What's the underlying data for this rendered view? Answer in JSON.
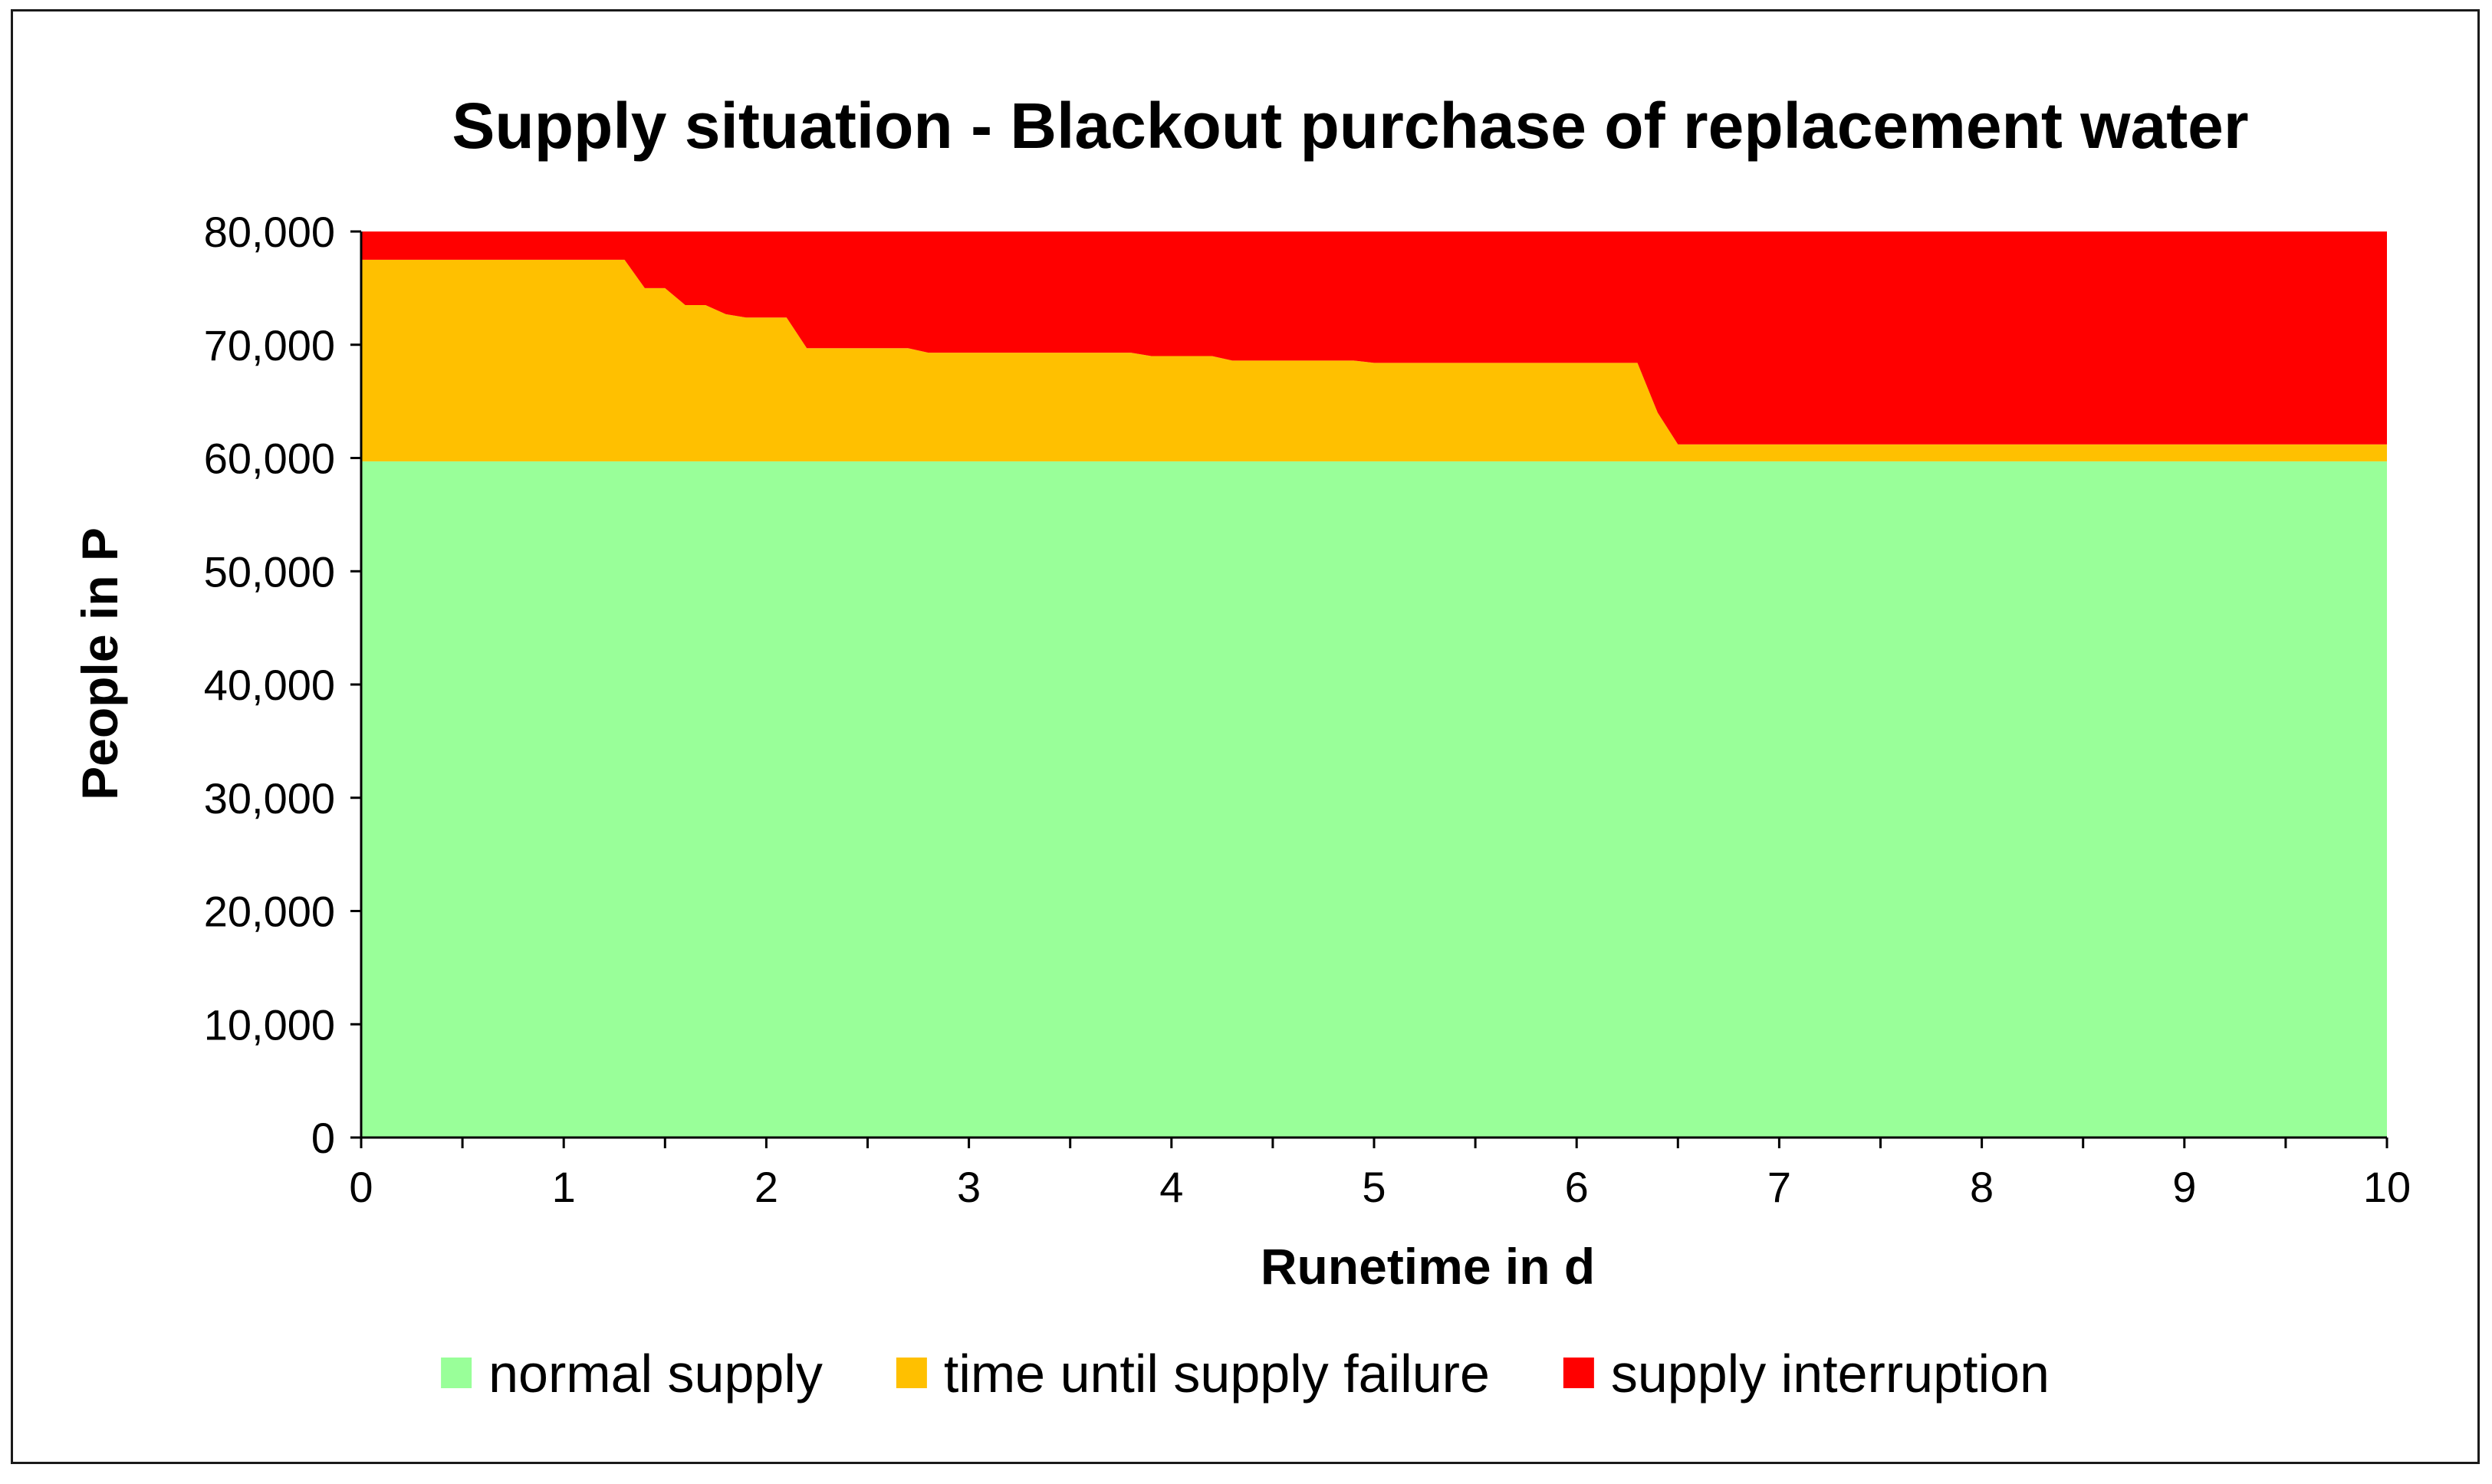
{
  "chart_data": {
    "type": "area",
    "stacked": true,
    "title": "Supply situation - Blackout purchase of replacement water",
    "xlabel": "Runetime in d",
    "ylabel": "People in P",
    "xlim": [
      0,
      10
    ],
    "ylim": [
      0,
      80000
    ],
    "x_ticks": [
      0,
      1,
      2,
      3,
      4,
      5,
      6,
      7,
      8,
      9,
      10
    ],
    "x_tick_labels": [
      "0",
      "1",
      "2",
      "3",
      "4",
      "5",
      "6",
      "7",
      "8",
      "9",
      "10"
    ],
    "y_ticks": [
      0,
      10000,
      20000,
      30000,
      40000,
      50000,
      60000,
      70000,
      80000
    ],
    "y_tick_labels": [
      "0",
      "10,000",
      "20,000",
      "30,000",
      "40,000",
      "50,000",
      "60,000",
      "70,000",
      "80,000"
    ],
    "grid": false,
    "legend_position": "bottom",
    "x": [
      0,
      0.1,
      0.2,
      0.3,
      0.4,
      0.5,
      0.6,
      0.7,
      0.8,
      0.9,
      1.0,
      1.1,
      1.2,
      1.3,
      1.4,
      1.5,
      1.6,
      1.7,
      1.8,
      1.9,
      2.0,
      2.1,
      2.2,
      2.3,
      2.4,
      2.5,
      2.6,
      2.7,
      2.8,
      2.9,
      3.0,
      3.1,
      3.2,
      3.3,
      3.4,
      3.5,
      3.6,
      3.7,
      3.8,
      3.9,
      4.0,
      4.1,
      4.2,
      4.3,
      4.4,
      4.5,
      4.6,
      4.7,
      4.8,
      4.9,
      5.0,
      5.1,
      5.2,
      5.3,
      5.4,
      5.5,
      5.6,
      5.7,
      5.8,
      5.9,
      6.0,
      6.1,
      6.2,
      6.3,
      6.4,
      6.5,
      6.6,
      6.7,
      6.8,
      6.9,
      7.0,
      7.5,
      8.0,
      8.5,
      9.0,
      9.5,
      10.0
    ],
    "series": [
      {
        "name": "normal supply",
        "color": "#99ff99",
        "values": [
          59700,
          59700,
          59700,
          59700,
          59700,
          59700,
          59700,
          59700,
          59700,
          59700,
          59700,
          59700,
          59700,
          59700,
          59700,
          59700,
          59700,
          59700,
          59700,
          59700,
          59700,
          59700,
          59700,
          59700,
          59700,
          59700,
          59700,
          59700,
          59700,
          59700,
          59700,
          59700,
          59700,
          59700,
          59700,
          59700,
          59700,
          59700,
          59700,
          59700,
          59700,
          59700,
          59700,
          59700,
          59700,
          59700,
          59700,
          59700,
          59700,
          59700,
          59700,
          59700,
          59700,
          59700,
          59700,
          59700,
          59700,
          59700,
          59700,
          59700,
          59700,
          59700,
          59700,
          59700,
          59700,
          59700,
          59700,
          59700,
          59700,
          59700,
          59700,
          59700,
          59700,
          59700,
          59700,
          59700,
          59700
        ]
      },
      {
        "name": "time until supply failure",
        "color": "#ffc000",
        "values": [
          17800,
          17800,
          17800,
          17800,
          17800,
          17800,
          17800,
          17800,
          17800,
          17800,
          17800,
          17800,
          17800,
          17800,
          15300,
          15300,
          13800,
          13800,
          13000,
          12700,
          12700,
          12700,
          10000,
          10000,
          10000,
          10000,
          10000,
          10000,
          9600,
          9600,
          9600,
          9600,
          9600,
          9600,
          9600,
          9600,
          9600,
          9600,
          9600,
          9300,
          9300,
          9300,
          9300,
          8900,
          8900,
          8900,
          8900,
          8900,
          8900,
          8900,
          8700,
          8700,
          8700,
          8700,
          8700,
          8700,
          8700,
          8700,
          8700,
          8700,
          8700,
          8700,
          8700,
          8700,
          4300,
          1500,
          1500,
          1500,
          1500,
          1500,
          1500,
          1500,
          1500,
          1500,
          1500,
          1500,
          1500
        ]
      },
      {
        "name": "supply interruption",
        "color": "#ff0000",
        "values": [
          2500,
          2500,
          2500,
          2500,
          2500,
          2500,
          2500,
          2500,
          2500,
          2500,
          2500,
          2500,
          2500,
          2500,
          5000,
          5000,
          6500,
          6500,
          7300,
          7600,
          7600,
          7600,
          10300,
          10300,
          10300,
          10300,
          10300,
          10300,
          10700,
          10700,
          10700,
          10700,
          10700,
          10700,
          10700,
          10700,
          10700,
          10700,
          10700,
          11000,
          11000,
          11000,
          11000,
          11400,
          11400,
          11400,
          11400,
          11400,
          11400,
          11400,
          11600,
          11600,
          11600,
          11600,
          11600,
          11600,
          11600,
          11600,
          11600,
          11600,
          11600,
          11600,
          11600,
          11600,
          16000,
          18800,
          18800,
          18800,
          18800,
          18800,
          18800,
          18800,
          18800,
          18800,
          18800,
          18800,
          18800
        ]
      }
    ]
  }
}
